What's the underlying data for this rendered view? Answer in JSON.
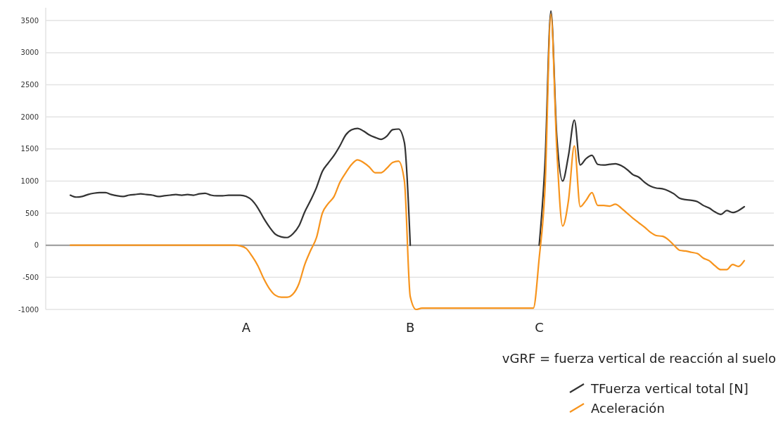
{
  "chart_data": {
    "type": "line",
    "categories": [
      null,
      null,
      null,
      null,
      null,
      null,
      null,
      null,
      null,
      null,
      null,
      null,
      null,
      null,
      null,
      null,
      null,
      null,
      null,
      null,
      null,
      null,
      null,
      null,
      null,
      null,
      null,
      null,
      null,
      null,
      "A",
      null,
      null,
      null,
      null,
      null,
      null,
      null,
      null,
      null,
      null,
      null,
      null,
      null,
      null,
      null,
      null,
      null,
      null,
      null,
      null,
      null,
      null,
      null,
      null,
      null,
      null,
      null,
      "B",
      null,
      null,
      null,
      null,
      null,
      null,
      null,
      null,
      null,
      null,
      null,
      null,
      null,
      null,
      null,
      null,
      null,
      null,
      null,
      null,
      null,
      "C",
      null,
      null,
      null,
      null,
      null,
      null,
      null,
      null,
      null,
      null,
      null,
      null,
      null,
      null,
      null,
      null,
      null,
      null,
      null,
      null,
      null,
      null,
      null,
      null,
      null,
      null,
      null,
      null,
      null,
      null,
      null,
      null,
      null,
      null,
      null
    ],
    "series": [
      {
        "name": "TFuerza vertical total [N]",
        "color": "#333333",
        "values": [
          780,
          750,
          760,
          790,
          810,
          820,
          820,
          790,
          770,
          760,
          780,
          790,
          800,
          790,
          780,
          760,
          770,
          780,
          790,
          780,
          790,
          780,
          800,
          810,
          780,
          770,
          770,
          780,
          780,
          780,
          760,
          700,
          580,
          420,
          280,
          170,
          130,
          120,
          180,
          300,
          520,
          700,
          900,
          1150,
          1280,
          1400,
          1550,
          1720,
          1800,
          1820,
          1780,
          1720,
          1680,
          1650,
          1700,
          1800,
          1810,
          1600,
          0,
          null,
          null,
          null,
          null,
          null,
          null,
          null,
          null,
          null,
          null,
          null,
          null,
          null,
          null,
          null,
          null,
          null,
          null,
          null,
          null,
          null,
          0,
          1300,
          3650,
          1700,
          1000,
          1400,
          1950,
          1250,
          1350,
          1400,
          1260,
          1250,
          1260,
          1270,
          1240,
          1180,
          1100,
          1060,
          980,
          920,
          890,
          880,
          850,
          800,
          730,
          710,
          700,
          680,
          620,
          580,
          520,
          480,
          540,
          510,
          540,
          600
        ]
      },
      {
        "name": "Aceleración",
        "color": "#f7941d",
        "values": [
          0,
          0,
          0,
          0,
          0,
          0,
          0,
          0,
          0,
          0,
          0,
          0,
          0,
          0,
          0,
          0,
          0,
          0,
          0,
          0,
          0,
          0,
          0,
          0,
          0,
          0,
          0,
          0,
          0,
          -10,
          -50,
          -170,
          -320,
          -520,
          -680,
          -780,
          -810,
          -810,
          -760,
          -600,
          -300,
          -80,
          120,
          500,
          650,
          760,
          980,
          1130,
          1260,
          1330,
          1290,
          1220,
          1130,
          1130,
          1200,
          1290,
          1310,
          1000,
          -800,
          -1000,
          -980,
          -980,
          -980,
          -980,
          -980,
          -980,
          -980,
          -980,
          -980,
          -980,
          -980,
          -980,
          -980,
          -980,
          -980,
          -980,
          -980,
          -980,
          -980,
          -980,
          -200,
          900,
          3600,
          1500,
          300,
          700,
          1550,
          600,
          700,
          820,
          620,
          620,
          610,
          640,
          580,
          500,
          420,
          350,
          280,
          200,
          150,
          140,
          90,
          0,
          -80,
          -90,
          -110,
          -130,
          -200,
          -240,
          -320,
          -380,
          -380,
          -300,
          -330,
          -240
        ]
      }
    ],
    "ylim": [
      -1000,
      3700
    ],
    "yticks": [
      -1000,
      -500,
      0,
      500,
      1000,
      1500,
      2000,
      2500,
      3000,
      3500
    ],
    "grid": "y",
    "ref_lines": [
      {
        "axis": "y",
        "value": 0,
        "color": "#999999"
      }
    ],
    "annotations": [
      "vGRF = fuerza vertical de reacción al suelo"
    ],
    "legend": "bottom right",
    "line_style": "solid",
    "marker": "none"
  }
}
